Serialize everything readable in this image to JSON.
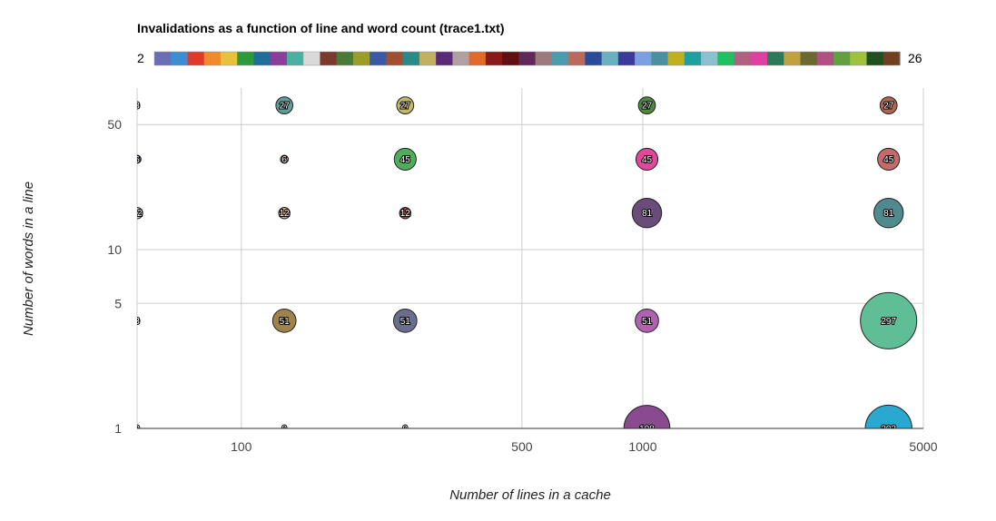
{
  "chart_data": {
    "type": "scatter",
    "title": "Invalidations as a function of line and word count (trace1.txt)",
    "xlabel": "Number of lines in a cache",
    "ylabel": "Number of words in a line",
    "x_scale": "log",
    "y_scale": "log",
    "xlim": [
      55,
      5000
    ],
    "ylim": [
      1,
      80
    ],
    "x_ticks": [
      "100",
      "500",
      "1000",
      "5000"
    ],
    "x_tick_values": [
      100,
      500,
      1000,
      5000
    ],
    "y_ticks": [
      "1",
      "5",
      "10",
      "50"
    ],
    "y_tick_values": [
      1,
      5,
      10,
      50
    ],
    "grid": true,
    "colorbar": {
      "min": "2",
      "max": "26"
    },
    "colorbar_colors": [
      "#6a6fb5",
      "#3b8fd0",
      "#e23a2a",
      "#f08a2b",
      "#e6c23a",
      "#2f9a3b",
      "#1f6f9a",
      "#8c3c9b",
      "#4cb0a0",
      "#d9d9d9",
      "#7a3b2a",
      "#4a7a3a",
      "#9c9c2a",
      "#3a5aa5",
      "#a05030",
      "#2a8a8a",
      "#c0b060",
      "#5a2a7a",
      "#b0a0a0",
      "#e06a2a",
      "#8a1a1a",
      "#601010",
      "#5f2a5a",
      "#9a7a7a",
      "#4a9ab0",
      "#ba6a5a",
      "#2a4a9a",
      "#6ab0c0",
      "#3a3a9a",
      "#7aa0e0",
      "#4a90a0",
      "#c0b020",
      "#1fa0a0",
      "#8ac0d0",
      "#20c060",
      "#b06080",
      "#e040a0",
      "#2a7a5a",
      "#c0a040",
      "#6a6a30",
      "#b05080",
      "#60a040",
      "#a0c040",
      "#205020",
      "#704020"
    ],
    "points": [
      {
        "x": 55,
        "y": 64,
        "label": "3",
        "size": 3,
        "color": "#c9c2b6"
      },
      {
        "x": 128,
        "y": 64,
        "label": "27",
        "size": 27,
        "color": "#5f9d9a"
      },
      {
        "x": 256,
        "y": 64,
        "label": "27",
        "size": 27,
        "color": "#c2ba6a"
      },
      {
        "x": 1024,
        "y": 64,
        "label": "27",
        "size": 27,
        "color": "#4e8a3e"
      },
      {
        "x": 4096,
        "y": 64,
        "label": "27",
        "size": 27,
        "color": "#b26552"
      },
      {
        "x": 55,
        "y": 32,
        "label": "6",
        "size": 6,
        "color": "#5a6bb5"
      },
      {
        "x": 128,
        "y": 32,
        "label": "6",
        "size": 6,
        "color": "#d8a86a"
      },
      {
        "x": 256,
        "y": 32,
        "label": "45",
        "size": 45,
        "color": "#4fae5a"
      },
      {
        "x": 1024,
        "y": 32,
        "label": "45",
        "size": 45,
        "color": "#e0489a"
      },
      {
        "x": 4096,
        "y": 32,
        "label": "45",
        "size": 45,
        "color": "#c46a6a"
      },
      {
        "x": 55,
        "y": 16,
        "label": "12",
        "size": 12,
        "color": "#c8c8c8"
      },
      {
        "x": 128,
        "y": 16,
        "label": "12",
        "size": 12,
        "color": "#d9a47a"
      },
      {
        "x": 256,
        "y": 16,
        "label": "12",
        "size": 12,
        "color": "#c0392b"
      },
      {
        "x": 1024,
        "y": 16,
        "label": "81",
        "size": 81,
        "color": "#6a4c7a"
      },
      {
        "x": 4096,
        "y": 16,
        "label": "81",
        "size": 81,
        "color": "#4f8a8f"
      },
      {
        "x": 55,
        "y": 4,
        "label": "3",
        "size": 3,
        "color": "#d9a0a0"
      },
      {
        "x": 128,
        "y": 4,
        "label": "51",
        "size": 51,
        "color": "#a0834a"
      },
      {
        "x": 256,
        "y": 4,
        "label": "51",
        "size": 51,
        "color": "#6a6e8c"
      },
      {
        "x": 1024,
        "y": 4,
        "label": "51",
        "size": 51,
        "color": "#b062b0"
      },
      {
        "x": 4096,
        "y": 4,
        "label": "297",
        "size": 297,
        "color": "#5fbe95"
      },
      {
        "x": 55,
        "y": 1,
        "label": "0",
        "size": 0,
        "color": "#3a5aa5"
      },
      {
        "x": 128,
        "y": 1,
        "label": "0",
        "size": 0,
        "color": "#dddddd"
      },
      {
        "x": 256,
        "y": 1,
        "label": "0",
        "size": 0,
        "color": "#dddddd"
      },
      {
        "x": 1024,
        "y": 1,
        "label": "198",
        "size": 198,
        "color": "#8a4a8f"
      },
      {
        "x": 4096,
        "y": 1,
        "label": "203",
        "size": 203,
        "color": "#2aa9d0"
      }
    ]
  }
}
